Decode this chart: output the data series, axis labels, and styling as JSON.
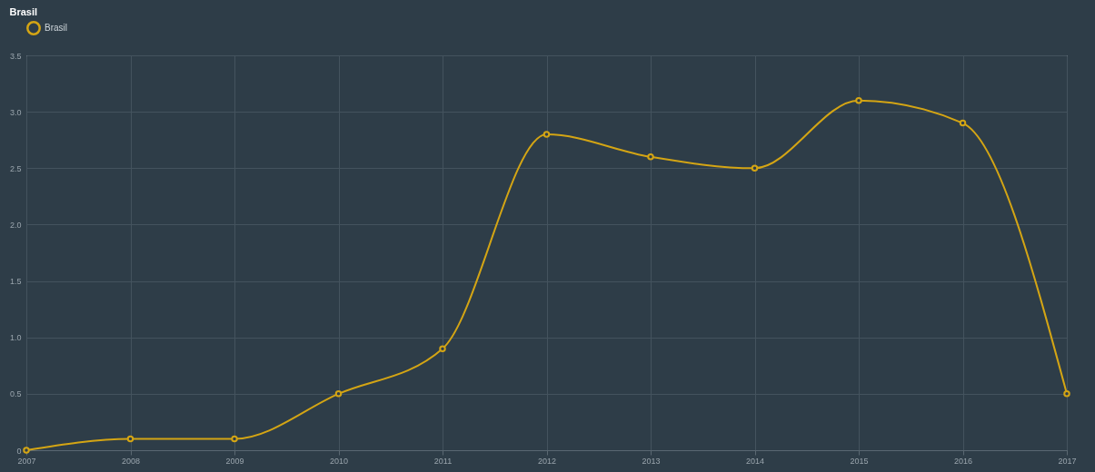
{
  "chart_data": {
    "type": "line",
    "title": "Brasil",
    "x": [
      2007,
      2008,
      2009,
      2010,
      2011,
      2012,
      2013,
      2014,
      2015,
      2016,
      2017
    ],
    "series": [
      {
        "name": "Brasil",
        "color": "#d4a514",
        "values": [
          0,
          0.1,
          0.1,
          0.5,
          0.9,
          2.8,
          2.6,
          2.5,
          3.1,
          2.9,
          0.5
        ]
      }
    ],
    "xlim": [
      2007,
      2017
    ],
    "xticks": [
      2007,
      2008,
      2009,
      2010,
      2011,
      2012,
      2013,
      2014,
      2015,
      2016,
      2017
    ],
    "ylim": [
      0,
      3.5
    ],
    "yticks": [
      0,
      0.5,
      {
        "value": 1,
        "label": "1.0"
      },
      1.5,
      {
        "value": 2,
        "label": "2.0"
      },
      2.5,
      {
        "value": 3,
        "label": "3.0"
      },
      3.5
    ],
    "grid": true,
    "legend": "top",
    "marker": "circle",
    "line_style": "solid"
  }
}
